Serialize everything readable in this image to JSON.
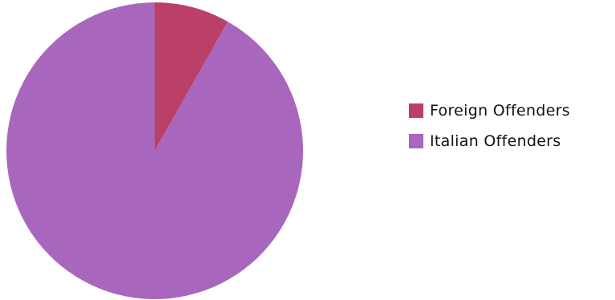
{
  "chart_data": {
    "type": "pie",
    "slices": [
      {
        "label": "Foreign Offenders",
        "value": 8.2,
        "color": "#bb4067"
      },
      {
        "label": "Italian Offenders",
        "value": 91.8,
        "color": "#a966bd"
      }
    ],
    "start_angle_deg": 0,
    "direction": "clockwise",
    "legend_position": "right"
  }
}
